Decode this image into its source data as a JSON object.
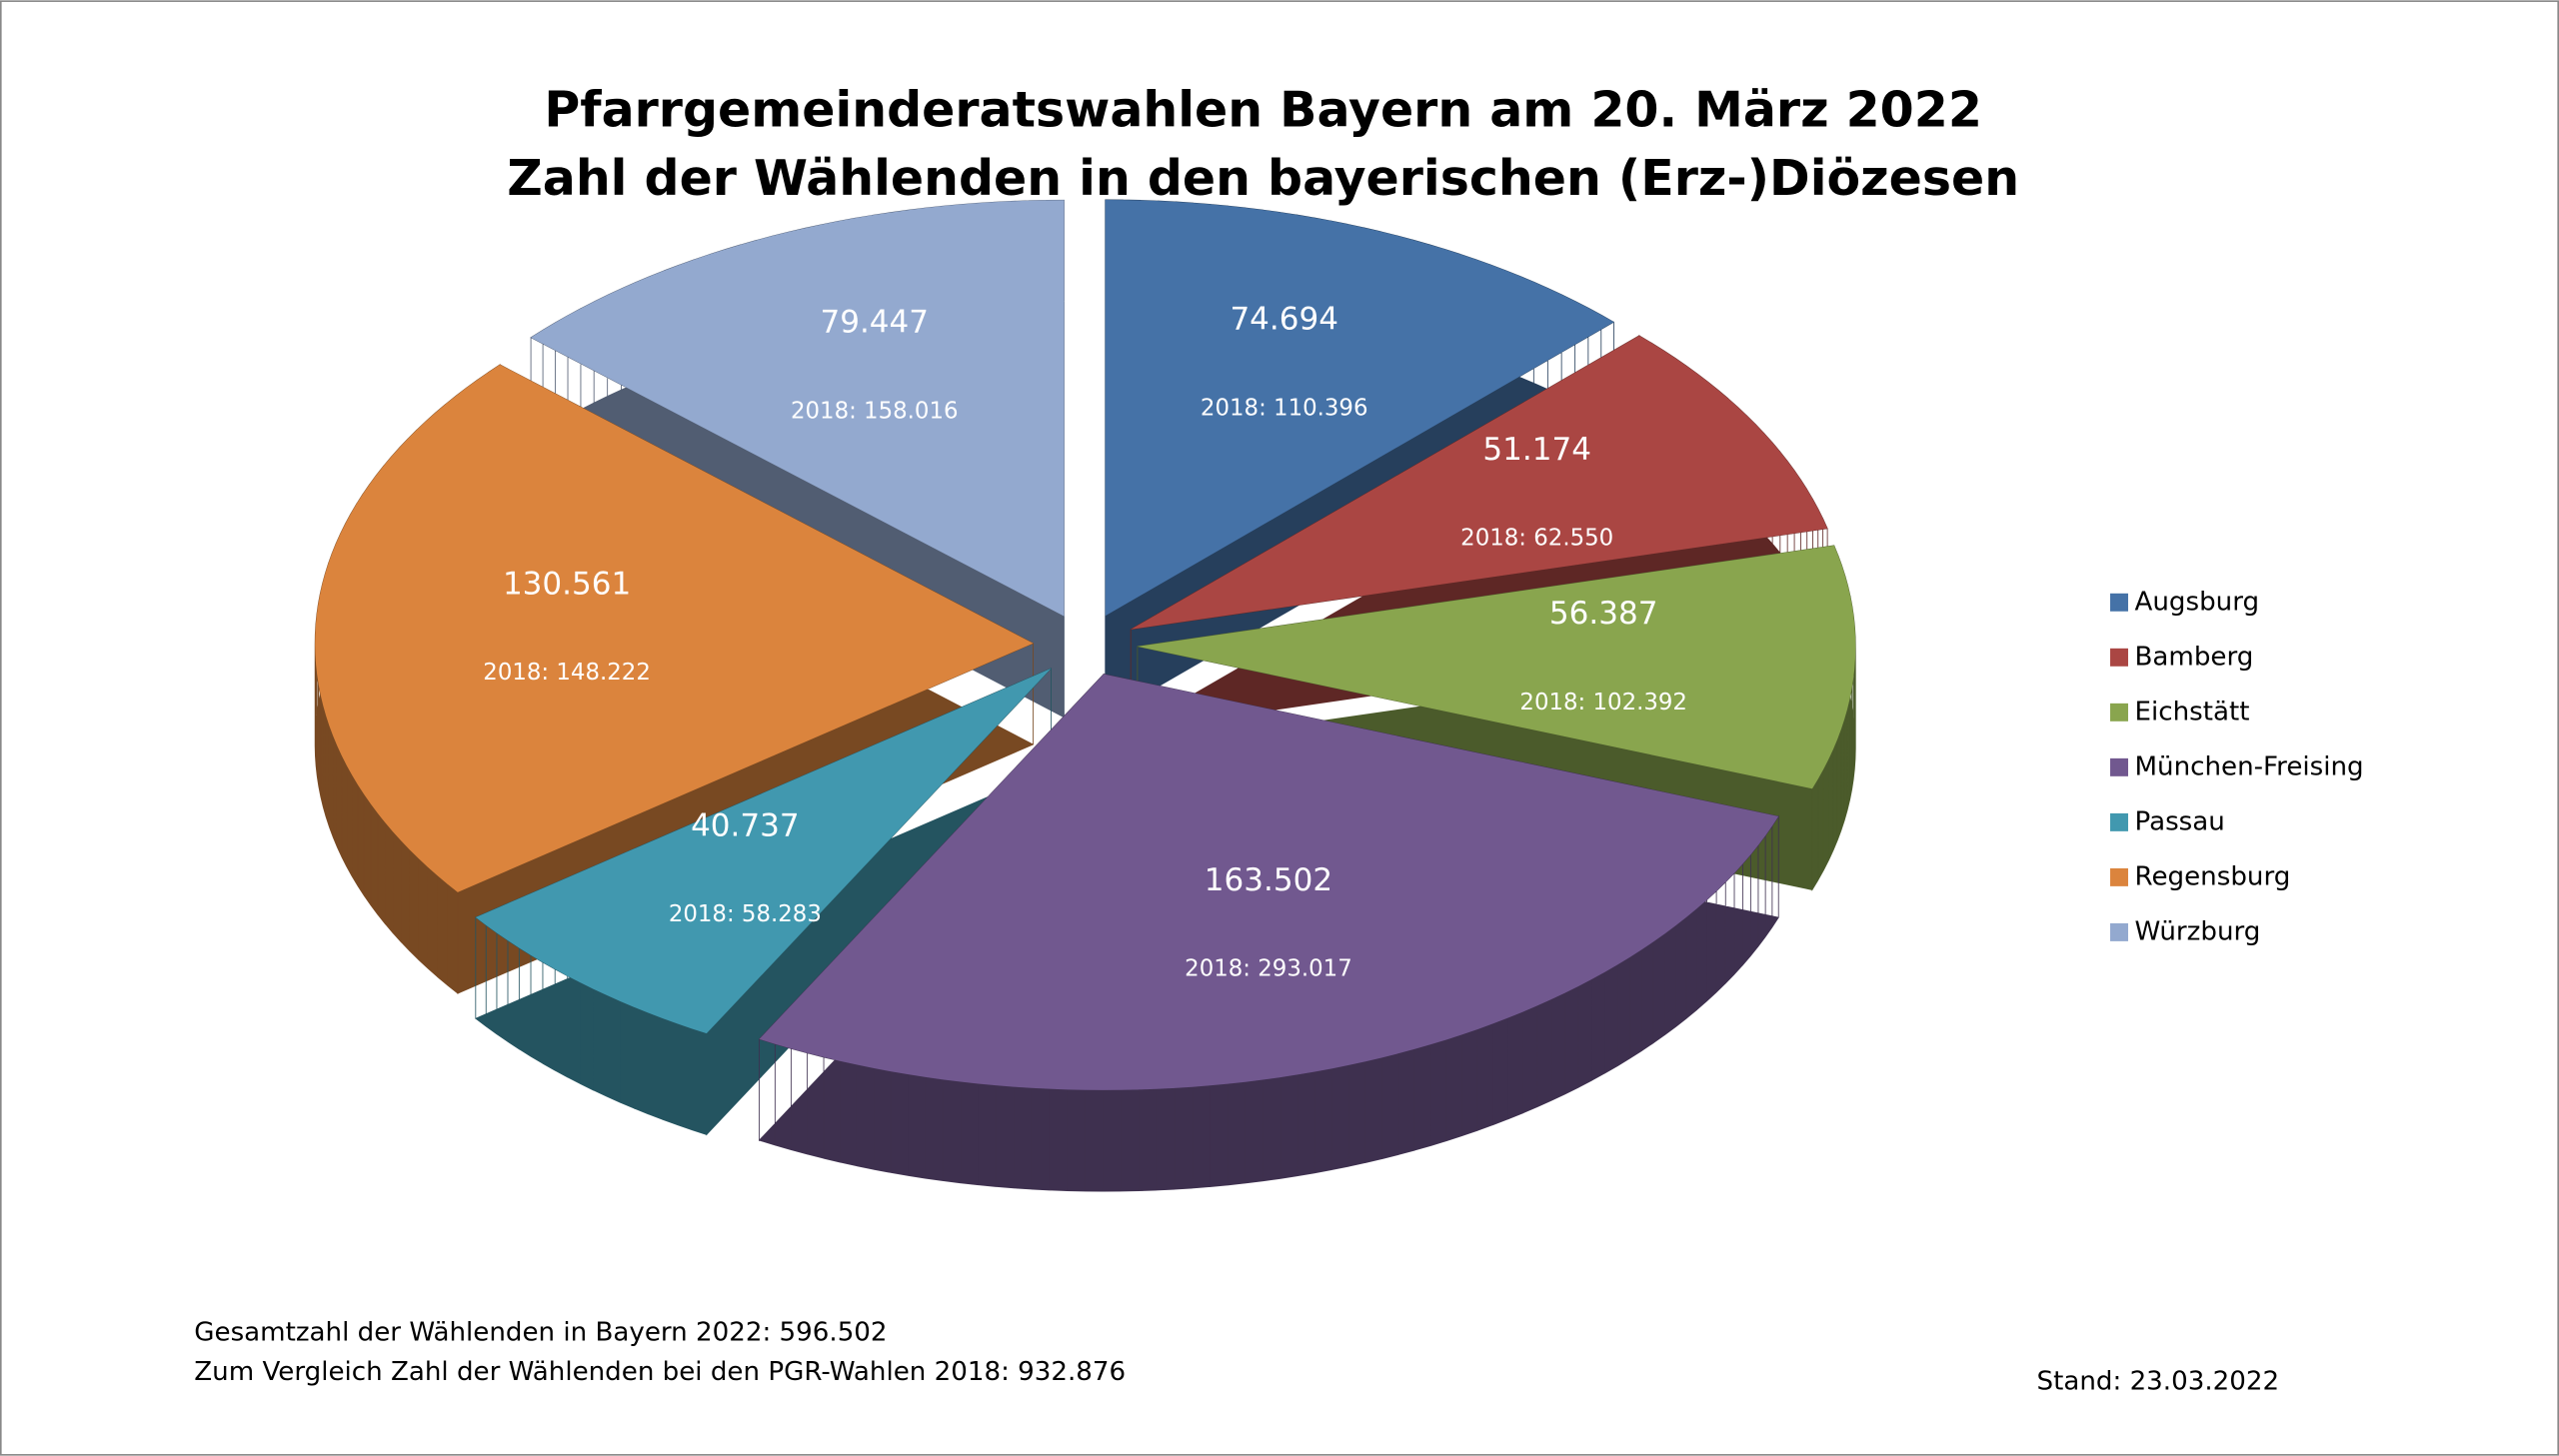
{
  "chart_data": {
    "type": "pie",
    "title": "Pfarrgemeinderatswahlen Bayern am 20. März 2022",
    "subtitle": "Zahl der Wählenden in den bayerischen (Erz-)Diözesen",
    "categories": [
      "Augsburg",
      "Bamberg",
      "Eichstätt",
      "München-Freising",
      "Passau",
      "Regensburg",
      "Würzburg"
    ],
    "values": [
      74694,
      51174,
      56387,
      163502,
      40737,
      130561,
      79447
    ],
    "value_labels": [
      "74.694",
      "51.174",
      "56.387",
      "163.502",
      "40.737",
      "130.561",
      "79.447"
    ],
    "labels_2018": [
      "2018: 110.396",
      "2018: 62.550",
      "2018: 102.392",
      "2018: 293.017",
      "2018: 58.283",
      "2018: 148.222",
      "2018: 158.016"
    ],
    "colors": [
      "#4572a7",
      "#aa4643",
      "#89a54e",
      "#71588f",
      "#4198af",
      "#db843d",
      "#93a9cf"
    ],
    "legend": "right",
    "notes": [
      "Gesamtzahl der Wählenden in Bayern 2022: 596.502",
      "Zum Vergleich Zahl der Wählenden bei den PGR-Wahlen 2018: 932.876"
    ],
    "stand": "Stand: 23.03.2022"
  }
}
